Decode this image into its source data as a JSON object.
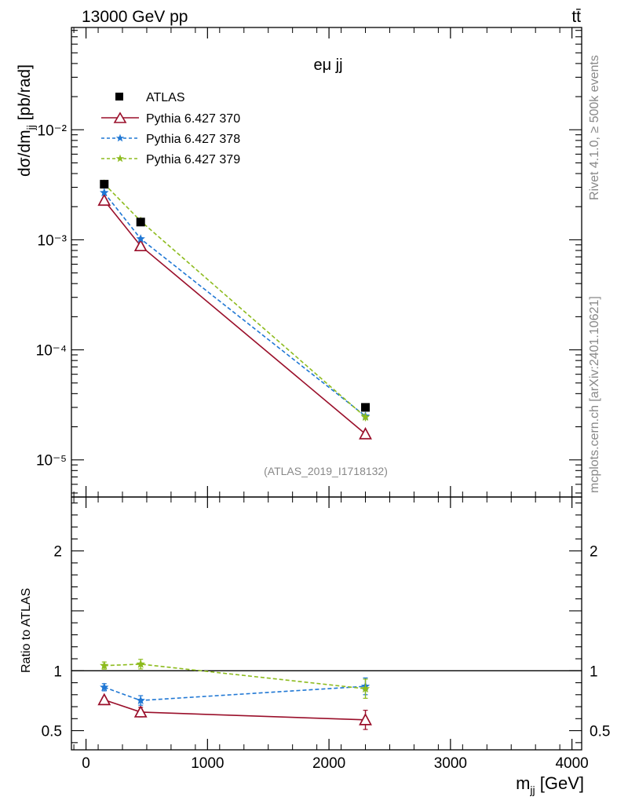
{
  "header": {
    "energy_label": "13000 GeV pp",
    "process_label": "tt̄"
  },
  "side_labels": {
    "rivet": "Rivet 4.1.0, ≥ 500k events",
    "site": "mcplots.cern.ch [arXiv:2401.10621]"
  },
  "colors": {
    "data": "#000000",
    "p370": "#9a0f2a",
    "p378": "#1f77d4",
    "p379": "#8dbb1e",
    "watermark": "#888888"
  },
  "chart_data": [
    {
      "type": "line",
      "panel": "main",
      "title": "eμ jj",
      "watermark": "(ATLAS_2019_I1718132)",
      "ylabel": "dσ/dm_jj [pb/rad]",
      "yscale": "log",
      "xlim": [
        -120,
        4080
      ],
      "ylim": [
        4.6e-06,
        0.085
      ],
      "ytick_labels": [
        "10⁻⁵",
        "10⁻⁴",
        "10⁻³",
        "10⁻²"
      ],
      "ytick_values": [
        1e-05,
        0.0001,
        0.001,
        0.01
      ],
      "x": [
        150,
        450,
        2300
      ],
      "legend": [
        "ATLAS",
        "Pythia 6.427 370",
        "Pythia 6.427 378",
        "Pythia 6.427 379"
      ],
      "series": [
        {
          "name": "ATLAS",
          "key": "data",
          "marker": "square",
          "values": [
            0.0032,
            0.00145,
            3e-05
          ],
          "errors": [
            8e-05,
            4e-05,
            1.5e-06
          ]
        },
        {
          "name": "Pythia 6.427 370",
          "key": "p370",
          "marker": "triangle",
          "values": [
            0.00228,
            0.00088,
            1.72e-05
          ],
          "errors": [
            5e-05,
            4e-05,
            1.8e-06
          ]
        },
        {
          "name": "Pythia 6.427 378",
          "key": "p378",
          "marker": "star",
          "values": [
            0.00268,
            0.00102,
            2.5e-05
          ],
          "errors": [
            5e-05,
            4e-05,
            2e-06
          ]
        },
        {
          "name": "Pythia 6.427 379",
          "key": "p379",
          "marker": "star",
          "values": [
            0.00322,
            0.00148,
            2.45e-05
          ],
          "errors": [
            5e-05,
            4e-05,
            2e-06
          ]
        }
      ]
    },
    {
      "type": "line",
      "panel": "ratio",
      "ylabel": "Ratio to ATLAS",
      "xlabel": "m_jj [GeV]",
      "xlim": [
        -120,
        4080
      ],
      "ylim": [
        0.34,
        2.45
      ],
      "xtick_labels": [
        "0",
        "1000",
        "2000",
        "3000",
        "4000"
      ],
      "xtick_values": [
        0,
        1000,
        2000,
        3000,
        4000
      ],
      "ytick_labels": [
        "0.5",
        "1",
        "2"
      ],
      "ytick_values": [
        0.5,
        1,
        2
      ],
      "reference": 1,
      "x": [
        150,
        450,
        2300
      ],
      "series": [
        {
          "name": "Pythia 6.427 370",
          "key": "p370",
          "marker": "triangle",
          "values": [
            0.757,
            0.655,
            0.59
          ],
          "errors": [
            0.02,
            0.04,
            0.08
          ]
        },
        {
          "name": "Pythia 6.427 378",
          "key": "p378",
          "marker": "star",
          "values": [
            0.862,
            0.752,
            0.87
          ],
          "errors": [
            0.03,
            0.04,
            0.07
          ]
        },
        {
          "name": "Pythia 6.427 379",
          "key": "p379",
          "marker": "star",
          "values": [
            1.043,
            1.055,
            0.85
          ],
          "errors": [
            0.03,
            0.04,
            0.08
          ]
        }
      ]
    }
  ]
}
